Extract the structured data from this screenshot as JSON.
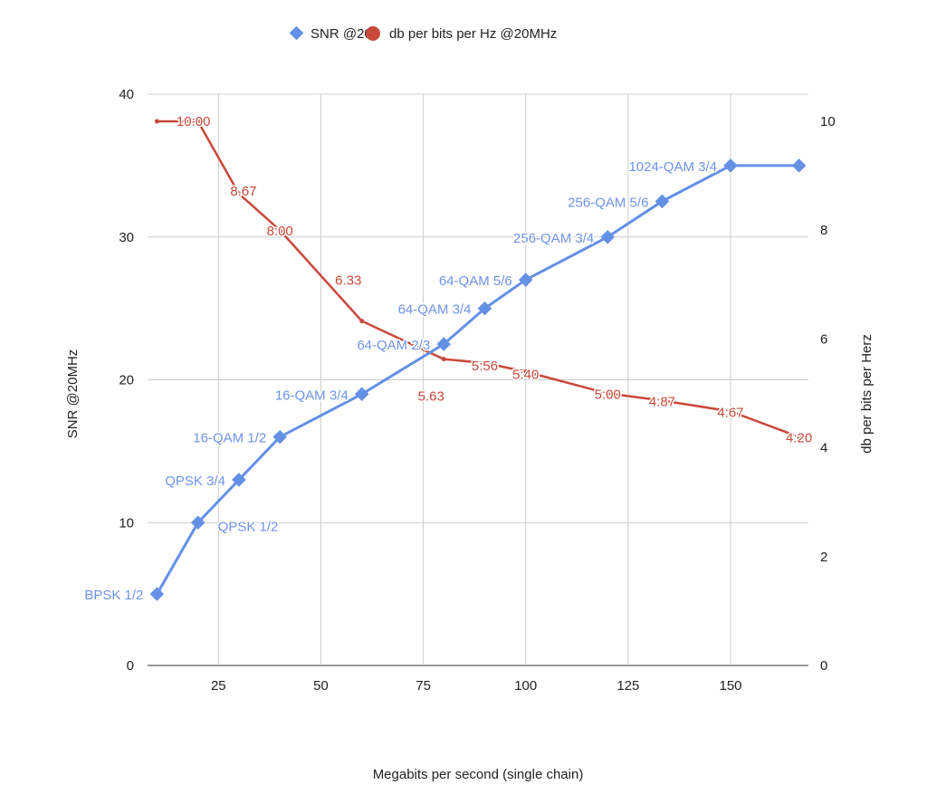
{
  "chart_data": {
    "type": "line",
    "xlabel": "Megabits per second (single chain)",
    "ylabel": "SNR @20MHz",
    "y2label": "db per bits per Herz",
    "xlim": [
      7.7,
      169
    ],
    "ylim": [
      0,
      40
    ],
    "y2lim": [
      0,
      10.5
    ],
    "xticks": [
      25,
      50,
      75,
      100,
      125,
      150
    ],
    "yticks": [
      0,
      10,
      20,
      30,
      40
    ],
    "y2ticks": [
      0,
      2,
      4,
      6,
      8,
      10
    ],
    "grid": true,
    "legend": "top",
    "series": [
      {
        "name": "SNR @20",
        "axis": "left",
        "color": "#6490e6",
        "marker": "diamond",
        "x": [
          10,
          20,
          30,
          40,
          60,
          80,
          90,
          100,
          120,
          133.3,
          150,
          166.7
        ],
        "y": [
          5,
          10,
          13,
          16,
          19,
          22.5,
          25,
          27,
          30,
          32.5,
          35,
          35
        ],
        "labels": [
          "BPSK 1/2",
          "QPSK 1/2",
          "QPSK 3/4",
          "16-QAM 1/2",
          "16-QAM 3/4",
          "64-QAM 2/3",
          "64-QAM 3/4",
          "64-QAM 5/6",
          "256-QAM 3/4",
          "256-QAM 5/6",
          "1024-QAM 3/4",
          ""
        ]
      },
      {
        "name": "db per bits per Hz @20MHz",
        "axis": "right",
        "color": "#c8493a",
        "marker": "circle",
        "x": [
          10,
          20,
          30,
          40,
          60,
          80,
          90,
          100,
          120,
          133.3,
          150,
          166.7
        ],
        "y": [
          10,
          10,
          8.67,
          8.0,
          6.33,
          5.63,
          5.56,
          5.4,
          5.0,
          4.87,
          4.67,
          4.2
        ],
        "labels": [
          "",
          "10:00",
          "8.67",
          "8:00",
          "6.33",
          "5.63",
          "5:56",
          "5:40",
          "5:00",
          "4:87",
          "4:67",
          "4:20"
        ]
      }
    ]
  }
}
